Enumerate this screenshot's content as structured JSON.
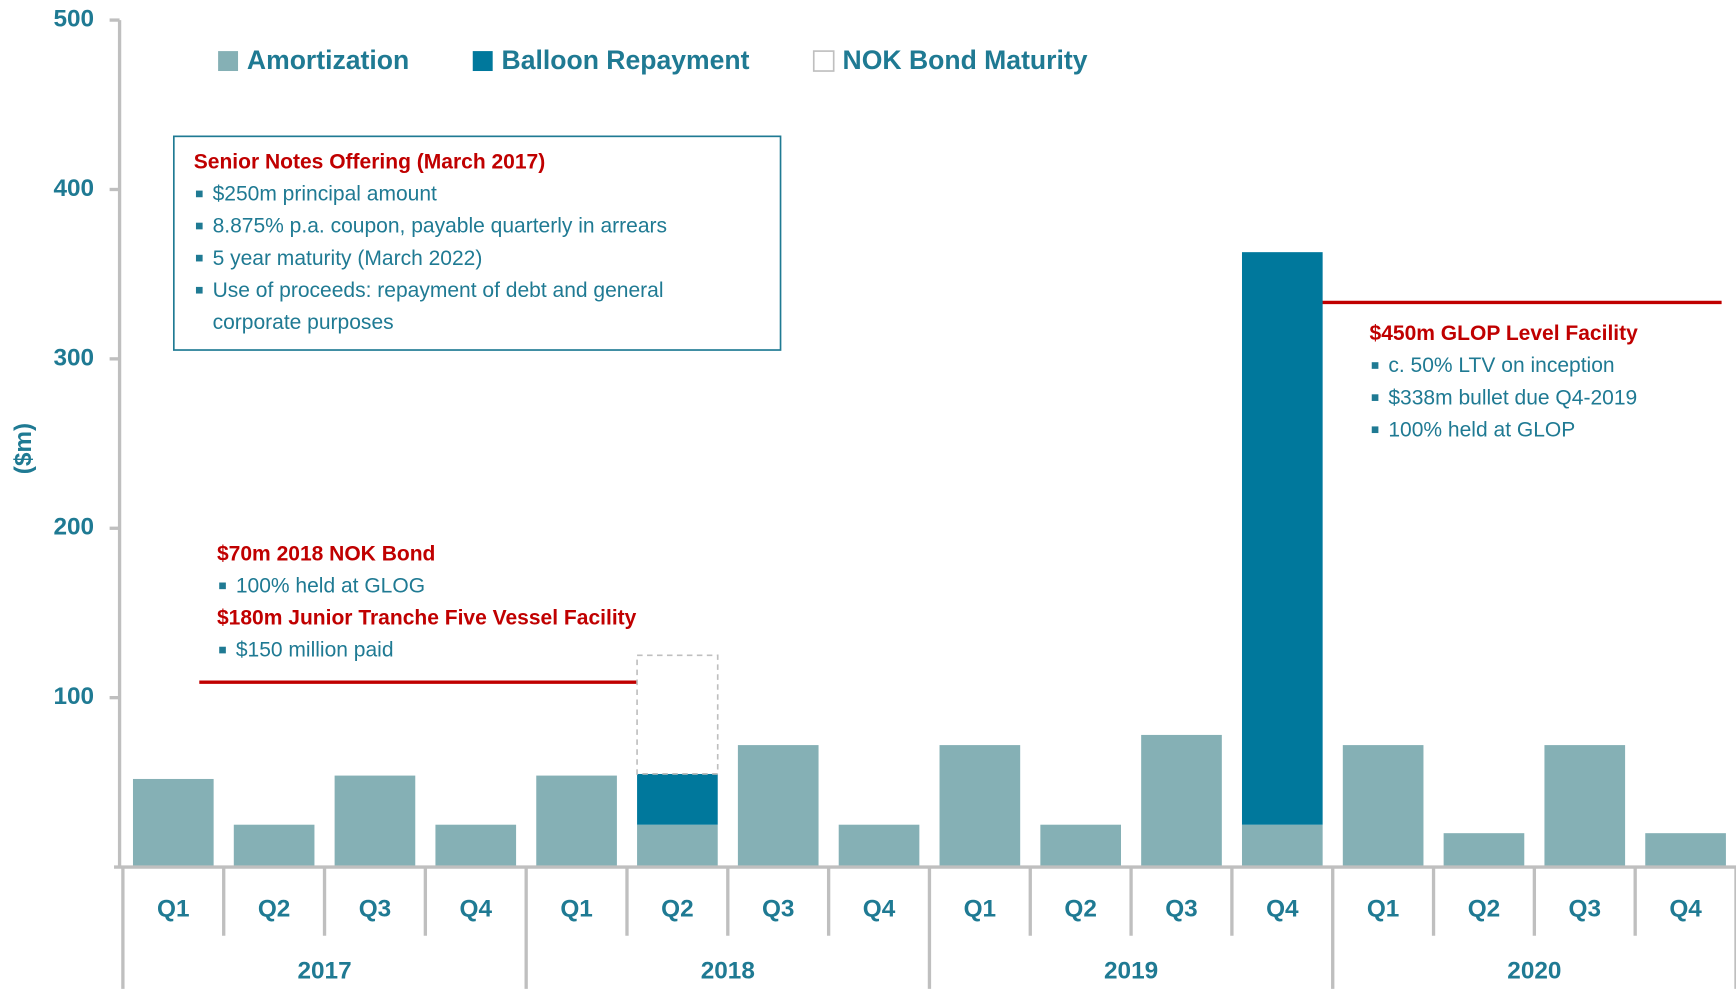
{
  "chart_data": {
    "type": "stacked_bar",
    "y_label": "($m)",
    "categories": [
      "Q1",
      "Q2",
      "Q3",
      "Q4",
      "Q1",
      "Q2",
      "Q3",
      "Q4",
      "Q1",
      "Q2",
      "Q3",
      "Q4",
      "Q1",
      "Q2",
      "Q3",
      "Q4"
    ],
    "groups": [
      "2017",
      "2018",
      "2019",
      "2020"
    ],
    "series": [
      {
        "name": "Amortization",
        "color": "#85b0b5",
        "values": [
          52,
          25,
          54,
          25,
          54,
          25,
          72,
          25,
          72,
          25,
          78,
          25,
          72,
          20,
          72,
          20
        ]
      },
      {
        "name": "Balloon Repayment",
        "color": "#00789c",
        "values": [
          null,
          null,
          null,
          null,
          null,
          30,
          null,
          null,
          null,
          null,
          null,
          338,
          null,
          null,
          null,
          null
        ]
      },
      {
        "name": "NOK Bond Maturity",
        "color": "#ffffff",
        "values": [
          null,
          null,
          null,
          null,
          null,
          70,
          null,
          null,
          null,
          null,
          null,
          null,
          null,
          null,
          null,
          null
        ]
      }
    ],
    "ylim": [
      0,
      500
    ],
    "yticks": [
      100,
      200,
      300,
      400,
      500
    ],
    "annotations": [
      {
        "title": "Senior Notes Offering (March 2017)",
        "bullets": [
          "$250m principal amount",
          "8.875% p.a. coupon, payable quarterly in arrears",
          "5 year maturity (March 2022)",
          "Use of proceeds: repayment of debt and general",
          "corporate purposes"
        ]
      },
      {
        "title": "$70m 2018 NOK Bond",
        "bullets": [
          "100% held at GLOG"
        ]
      },
      {
        "title": "$180m Junior Tranche Five Vessel Facility",
        "bullets": [
          "$150 million paid"
        ]
      },
      {
        "title": "$450m GLOP Level Facility",
        "bullets": [
          "c. 50% LTV on inception",
          "$338m bullet due Q4-2019",
          "100% held at GLOP"
        ]
      }
    ]
  }
}
